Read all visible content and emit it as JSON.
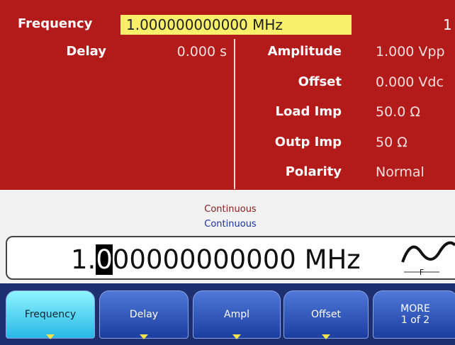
{
  "header": {
    "label": "Frequency",
    "value": "1.000000000000 MHz",
    "channel": "1"
  },
  "left_params": [
    {
      "label": "Delay",
      "value": "0.000 s"
    }
  ],
  "right_params": [
    {
      "label": "Amplitude",
      "value": "1.000 Vpp"
    },
    {
      "label": "Offset",
      "value": "0.000 Vdc"
    },
    {
      "label": "Load Imp",
      "value": "50.0 Ω"
    },
    {
      "label": "Outp Imp",
      "value": "50 Ω"
    },
    {
      "label": "Polarity",
      "value": "Normal"
    }
  ],
  "status": [
    "Continuous",
    "Continuous"
  ],
  "entry": {
    "before": "1.",
    "cursor": "0",
    "after": "00000000000 MHz",
    "wave_label": "F"
  },
  "softkeys": [
    [
      "Frequency"
    ],
    [
      "Delay"
    ],
    [
      "Ampl"
    ],
    [
      "Offset"
    ],
    [
      "MORE",
      "1 of 2"
    ]
  ]
}
